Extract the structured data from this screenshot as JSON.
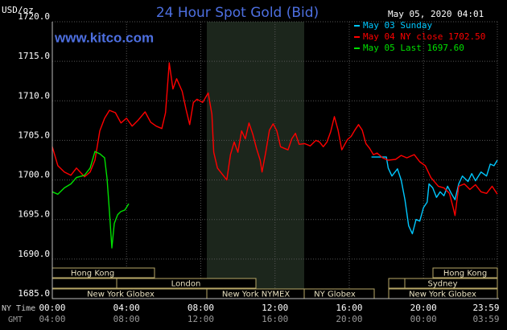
{
  "chart_data": {
    "type": "line",
    "title": "24 Hour Spot Gold (Bid)",
    "unit_label": "USD/oz",
    "timestamp": "May 05, 2020 04:01",
    "watermark": "www.kitco.com",
    "x_row_label": "NY Time",
    "x2_row_label": "GMT",
    "xlim": [
      0,
      23.98
    ],
    "xticks": [
      {
        "value": 0,
        "label": "00:00"
      },
      {
        "value": 4,
        "label": "04:00"
      },
      {
        "value": 8,
        "label": "08:00"
      },
      {
        "value": 12,
        "label": "12:00"
      },
      {
        "value": 16,
        "label": "16:00"
      },
      {
        "value": 20,
        "label": "20:00"
      },
      {
        "value": 23.98,
        "label": "23:59"
      }
    ],
    "x2_tick_labels": [
      "04:00",
      "08:00",
      "12:00",
      "16:00",
      "20:00",
      "00:00",
      "03:59"
    ],
    "ylim": [
      1685,
      1720
    ],
    "yticks": [
      {
        "value": 1685,
        "label": "1685.0"
      },
      {
        "value": 1690,
        "label": "1690.0"
      },
      {
        "value": 1695,
        "label": "1695.0"
      },
      {
        "value": 1700,
        "label": "1700.0"
      },
      {
        "value": 1705,
        "label": "1705.0"
      },
      {
        "value": 1710,
        "label": "1710.0"
      },
      {
        "value": 1715,
        "label": "1715.0"
      },
      {
        "value": 1720,
        "label": "1720.0"
      }
    ],
    "grid": true,
    "sessions": [
      "Hong Kong",
      "London",
      "New York Globex",
      "New York NYMEX",
      "NY Globex",
      "Hong Kong",
      "Sydney",
      "New York Globex"
    ],
    "series": [
      {
        "name": "May 03 Sunday",
        "color": "#00c8ff",
        "x": [
          17.2,
          18.0,
          18.1,
          18.3,
          18.6,
          18.8,
          19.0,
          19.2,
          19.4,
          19.6,
          19.8,
          20.0,
          20.2,
          20.3,
          20.5,
          20.7,
          20.9,
          21.1,
          21.3,
          21.5,
          21.7,
          21.9,
          22.1,
          22.4,
          22.6,
          22.8,
          23.1,
          23.4,
          23.6,
          23.8,
          23.98
        ],
        "values": [
          1702.9,
          1702.9,
          1701.5,
          1700.5,
          1701.4,
          1700.0,
          1697.5,
          1694.2,
          1693.2,
          1695.0,
          1694.8,
          1696.5,
          1697.2,
          1699.5,
          1699.0,
          1697.8,
          1698.5,
          1698.0,
          1699.2,
          1698.3,
          1697.5,
          1699.5,
          1700.5,
          1699.8,
          1700.8,
          1699.9,
          1701.0,
          1700.5,
          1702.0,
          1701.8,
          1702.5
        ]
      },
      {
        "name": "May 04 NY close 1702.50",
        "color": "#ff0000",
        "x": [
          0,
          0.3,
          0.65,
          1.0,
          1.3,
          1.74,
          2.04,
          2.3,
          2.56,
          2.82,
          3.08,
          3.4,
          3.7,
          4.0,
          4.3,
          4.6,
          5.0,
          5.3,
          5.6,
          5.9,
          6.1,
          6.3,
          6.5,
          6.7,
          7.0,
          7.2,
          7.4,
          7.6,
          7.8,
          8.1,
          8.4,
          8.6,
          8.7,
          8.9,
          9.2,
          9.4,
          9.6,
          9.8,
          10.0,
          10.2,
          10.4,
          10.6,
          10.8,
          11.0,
          11.2,
          11.3,
          11.5,
          11.7,
          11.9,
          12.1,
          12.3,
          12.5,
          12.7,
          12.9,
          13.1,
          13.3,
          13.6,
          13.9,
          14.2,
          14.4,
          14.6,
          14.8,
          15.0,
          15.2,
          15.4,
          15.6,
          15.9,
          16.1,
          16.3,
          16.5,
          16.7,
          16.9,
          17.1,
          17.3,
          17.5,
          17.8,
          18.1,
          18.5,
          18.8,
          19.1,
          19.5,
          19.8,
          20.1,
          20.4,
          20.8,
          21.1,
          21.4,
          21.6,
          21.7,
          21.9,
          22.2,
          22.5,
          22.8,
          23.1,
          23.4,
          23.7,
          23.98
        ],
        "values": [
          1704.2,
          1701.8,
          1701.0,
          1700.6,
          1701.5,
          1700.4,
          1701.0,
          1702.5,
          1706.2,
          1707.8,
          1708.8,
          1708.5,
          1707.2,
          1707.8,
          1706.8,
          1707.5,
          1708.6,
          1707.3,
          1706.8,
          1706.5,
          1708.5,
          1714.8,
          1711.5,
          1712.8,
          1711.2,
          1709.0,
          1707.0,
          1709.8,
          1710.2,
          1709.8,
          1711.0,
          1708.3,
          1703.5,
          1701.5,
          1700.6,
          1700.0,
          1703.2,
          1704.8,
          1703.5,
          1706.2,
          1705.2,
          1707.2,
          1705.8,
          1704.0,
          1702.5,
          1701.0,
          1703.5,
          1706.3,
          1707.1,
          1706.2,
          1704.2,
          1704.0,
          1703.8,
          1705.2,
          1705.9,
          1704.5,
          1704.6,
          1704.3,
          1705.0,
          1704.8,
          1704.2,
          1704.8,
          1706.1,
          1708.0,
          1706.3,
          1703.8,
          1705.1,
          1705.5,
          1706.3,
          1707.0,
          1706.3,
          1704.6,
          1704.0,
          1703.2,
          1703.4,
          1702.8,
          1702.5,
          1702.6,
          1703.1,
          1702.8,
          1703.2,
          1702.3,
          1701.8,
          1700.3,
          1699.2,
          1699.0,
          1698.3,
          1696.5,
          1695.5,
          1699.2,
          1699.5,
          1698.8,
          1699.4,
          1698.5,
          1698.3,
          1699.2,
          1698.2
        ]
      },
      {
        "name": "May 05 Last 1697.60",
        "color": "#00e000",
        "x": [
          0,
          0.3,
          0.65,
          1.0,
          1.3,
          1.74,
          2.04,
          2.3,
          2.56,
          2.82,
          2.95,
          3.08,
          3.21,
          3.34,
          3.52,
          3.69,
          3.91,
          4.12
        ],
        "values": [
          1698.5,
          1698.2,
          1699.0,
          1699.5,
          1700.3,
          1700.6,
          1701.5,
          1703.6,
          1703.3,
          1702.8,
          1700.2,
          1696.0,
          1691.4,
          1694.5,
          1695.6,
          1696.0,
          1696.2,
          1697.0
        ]
      }
    ]
  }
}
